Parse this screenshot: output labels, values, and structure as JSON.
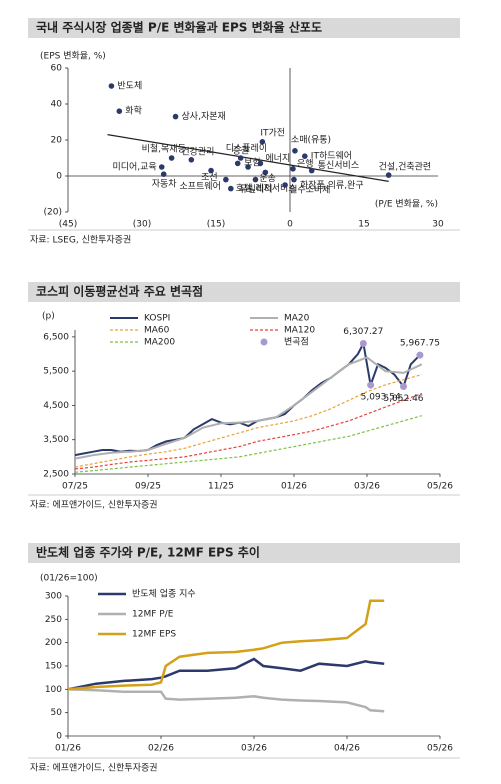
{
  "chart_data": [
    {
      "type": "scatter",
      "title": "국내 주식시장 업종별 P/E 변화율과 EPS 변화율 산포도",
      "y_label": "(EPS 변화율, %)",
      "x_label": "(P/E 변화율, %)",
      "source": "자료: LSEG, 신한투자증권",
      "xlim": [
        -45,
        30
      ],
      "xticks": [
        {
          "value": -45,
          "label": "(45)"
        },
        {
          "value": -30,
          "label": "(30)"
        },
        {
          "value": -15,
          "label": "(15)"
        },
        0,
        15,
        30
      ],
      "ylim": [
        -20,
        60
      ],
      "yticks": [
        {
          "value": -20,
          "label": "(20)"
        },
        0,
        20,
        40,
        60
      ],
      "color": "#2b3a6b",
      "labels": [
        "반도체",
        "화학",
        "상사,자본재",
        "비철,목재등",
        "미디어,교육",
        "자동차",
        "건강관리",
        "조선",
        "소프트웨어",
        "디스플레이",
        "증권",
        "보험",
        "IT가전",
        "에너지",
        "운송",
        "호텔,레저서비스",
        "유틸리티",
        "소매(유통)",
        "IT하드웨어",
        "은행",
        "통신서비스",
        "화장품,의류,완구",
        "필수소비재",
        "건설,건축관련"
      ],
      "x": [
        -36.2,
        -34.6,
        -23.2,
        -24,
        -26,
        -25.6,
        -20,
        -16,
        -13,
        -10.6,
        -10,
        -8.5,
        -5.6,
        -6,
        -5,
        -12,
        -7,
        1,
        3,
        0.6,
        4.4,
        0.8,
        -1,
        20
      ],
      "values": [
        50,
        36,
        33,
        10,
        5,
        1,
        9,
        3,
        -2,
        7,
        10,
        5,
        19,
        7,
        2,
        -7,
        -2,
        14,
        11,
        4,
        3,
        -2,
        -5,
        0.5
      ],
      "trendline": {
        "color": "#222",
        "x": [
          -37,
          20
        ],
        "values": [
          23,
          -3
        ]
      }
    },
    {
      "type": "line",
      "title": "코스피 이동평균선과 주요 변곡점",
      "y_label": "(p)",
      "source": "자료: 에프앤가이드, 신한투자증권",
      "xlim": [
        0,
        10
      ],
      "xticks": [
        {
          "value": 0,
          "label": "07/25"
        },
        {
          "value": 2,
          "label": "09/25"
        },
        {
          "value": 4,
          "label": "11/25"
        },
        {
          "value": 6,
          "label": "01/26"
        },
        {
          "value": 8,
          "label": "03/26"
        },
        {
          "value": 10,
          "label": "05/26"
        }
      ],
      "ylim": [
        2500,
        6700
      ],
      "yticks": [
        {
          "value": 2500,
          "label": "2,500"
        },
        {
          "value": 3500,
          "label": "3,500"
        },
        {
          "value": 4500,
          "label": "4,500"
        },
        {
          "value": 5500,
          "label": "5,500"
        },
        {
          "value": 6500,
          "label": "6,500"
        }
      ],
      "series": [
        {
          "name": "KOSPI",
          "color": "#2b3a6b",
          "width": 2,
          "x": [
            0,
            0.25,
            0.5,
            0.75,
            1,
            1.25,
            1.5,
            1.75,
            2,
            2.25,
            2.5,
            2.75,
            3,
            3.25,
            3.5,
            3.75,
            4,
            4.25,
            4.5,
            4.75,
            5,
            5.25,
            5.5,
            5.75,
            6,
            6.25,
            6.5,
            6.75,
            7,
            7.25,
            7.5,
            7.75,
            7.9,
            8.1,
            8.3,
            8.5,
            8.75,
            9,
            9.2,
            9.45
          ],
          "values": [
            3050,
            3100,
            3150,
            3200,
            3200,
            3150,
            3180,
            3170,
            3200,
            3350,
            3450,
            3500,
            3550,
            3800,
            3950,
            4100,
            4000,
            3950,
            4000,
            3900,
            4050,
            4100,
            4150,
            4250,
            4500,
            4700,
            4950,
            5150,
            5300,
            5500,
            5700,
            6000,
            6307.27,
            5093.54,
            5700,
            5600,
            5400,
            5052.46,
            5700,
            5967.75
          ]
        },
        {
          "name": "MA20",
          "color": "#b0b0b0",
          "width": 2,
          "x": [
            0,
            0.5,
            1,
            1.5,
            2,
            2.5,
            3,
            3.5,
            4,
            4.5,
            5,
            5.5,
            6,
            6.5,
            7,
            7.5,
            8,
            8.5,
            9,
            9.5
          ],
          "values": [
            2950,
            3050,
            3120,
            3150,
            3200,
            3380,
            3550,
            3850,
            3980,
            4000,
            4050,
            4150,
            4500,
            4900,
            5300,
            5700,
            5900,
            5500,
            5450,
            5700
          ]
        },
        {
          "name": "MA60",
          "color": "#e8a33a",
          "dash": true,
          "width": 1.2,
          "x": [
            0,
            0.5,
            1,
            1.5,
            2,
            2.5,
            3,
            3.5,
            4,
            4.5,
            5,
            5.5,
            6,
            6.5,
            7,
            7.5,
            8,
            8.5,
            9,
            9.5
          ],
          "values": [
            2700,
            2800,
            2900,
            3000,
            3080,
            3150,
            3250,
            3400,
            3550,
            3700,
            3850,
            3950,
            4050,
            4200,
            4400,
            4650,
            4900,
            5100,
            5250,
            5400
          ]
        },
        {
          "name": "MA120",
          "color": "#e8413a",
          "dash": true,
          "width": 1.2,
          "x": [
            0,
            0.5,
            1,
            1.5,
            2,
            2.5,
            3,
            3.5,
            4,
            4.5,
            5,
            5.5,
            6,
            6.5,
            7,
            7.5,
            8,
            8.5,
            9,
            9.5
          ],
          "values": [
            2650,
            2700,
            2780,
            2850,
            2900,
            2950,
            3000,
            3100,
            3200,
            3300,
            3450,
            3550,
            3650,
            3750,
            3900,
            4050,
            4250,
            4450,
            4650,
            4850
          ]
        },
        {
          "name": "MA200",
          "color": "#7cc242",
          "dash": true,
          "width": 1.2,
          "x": [
            0,
            0.5,
            1,
            1.5,
            2,
            2.5,
            3,
            3.5,
            4,
            4.5,
            5,
            5.5,
            6,
            6.5,
            7,
            7.5,
            8,
            8.5,
            9,
            9.5
          ],
          "values": [
            2550,
            2600,
            2650,
            2700,
            2750,
            2800,
            2850,
            2900,
            2950,
            3000,
            3100,
            3200,
            3300,
            3400,
            3500,
            3600,
            3750,
            3900,
            4050,
            4200
          ]
        },
        {
          "name": "변곡점",
          "color": "#a89ad0",
          "marker": true,
          "x": [
            7.9,
            8.1,
            9,
            9.45
          ],
          "values": [
            6307.27,
            5093.54,
            5052.46,
            5967.75
          ],
          "value_labels": [
            "6,307.27",
            "5,093.54",
            "5,052.46",
            "5,967.75"
          ]
        }
      ]
    },
    {
      "type": "line",
      "title": "반도체 업종 주가와 P/E, 12MF EPS 추이",
      "y_label": "(01/26=100)",
      "source": "자료: 에프앤가이드, 신한투자증권",
      "xlim": [
        0,
        4
      ],
      "xticks": [
        {
          "value": 0,
          "label": "01/26"
        },
        {
          "value": 1,
          "label": "02/26"
        },
        {
          "value": 2,
          "label": "03/26"
        },
        {
          "value": 3,
          "label": "04/26"
        },
        {
          "value": 4,
          "label": "05/26"
        }
      ],
      "ylim": [
        0,
        300
      ],
      "yticks": [
        0,
        50,
        100,
        150,
        200,
        250,
        300
      ],
      "series": [
        {
          "name": "반도체 업종 지수",
          "color": "#2b3a6b",
          "width": 2.5,
          "x": [
            0,
            0.3,
            0.6,
            0.9,
            1,
            1.05,
            1.2,
            1.5,
            1.8,
            2,
            2.1,
            2.3,
            2.5,
            2.7,
            3,
            3.2,
            3.25,
            3.4
          ],
          "values": [
            100,
            112,
            118,
            122,
            125,
            128,
            140,
            140,
            145,
            165,
            150,
            145,
            140,
            155,
            150,
            160,
            158,
            155
          ]
        },
        {
          "name": "12MF P/E",
          "color": "#b0b0b0",
          "width": 2.5,
          "x": [
            0,
            0.3,
            0.6,
            0.9,
            1,
            1.05,
            1.2,
            1.5,
            1.8,
            2,
            2.1,
            2.3,
            2.5,
            2.7,
            3,
            3.2,
            3.25,
            3.4
          ],
          "values": [
            100,
            98,
            95,
            95,
            95,
            80,
            78,
            80,
            82,
            85,
            82,
            78,
            76,
            75,
            72,
            62,
            55,
            53
          ]
        },
        {
          "name": "12MF EPS",
          "color": "#d4a017",
          "width": 2.5,
          "x": [
            0,
            0.3,
            0.6,
            0.9,
            1,
            1.05,
            1.2,
            1.5,
            1.8,
            2,
            2.1,
            2.3,
            2.5,
            2.7,
            3,
            3.2,
            3.25,
            3.4
          ],
          "values": [
            100,
            105,
            108,
            110,
            115,
            150,
            170,
            178,
            180,
            185,
            188,
            200,
            203,
            205,
            210,
            240,
            290,
            290
          ]
        }
      ]
    }
  ]
}
